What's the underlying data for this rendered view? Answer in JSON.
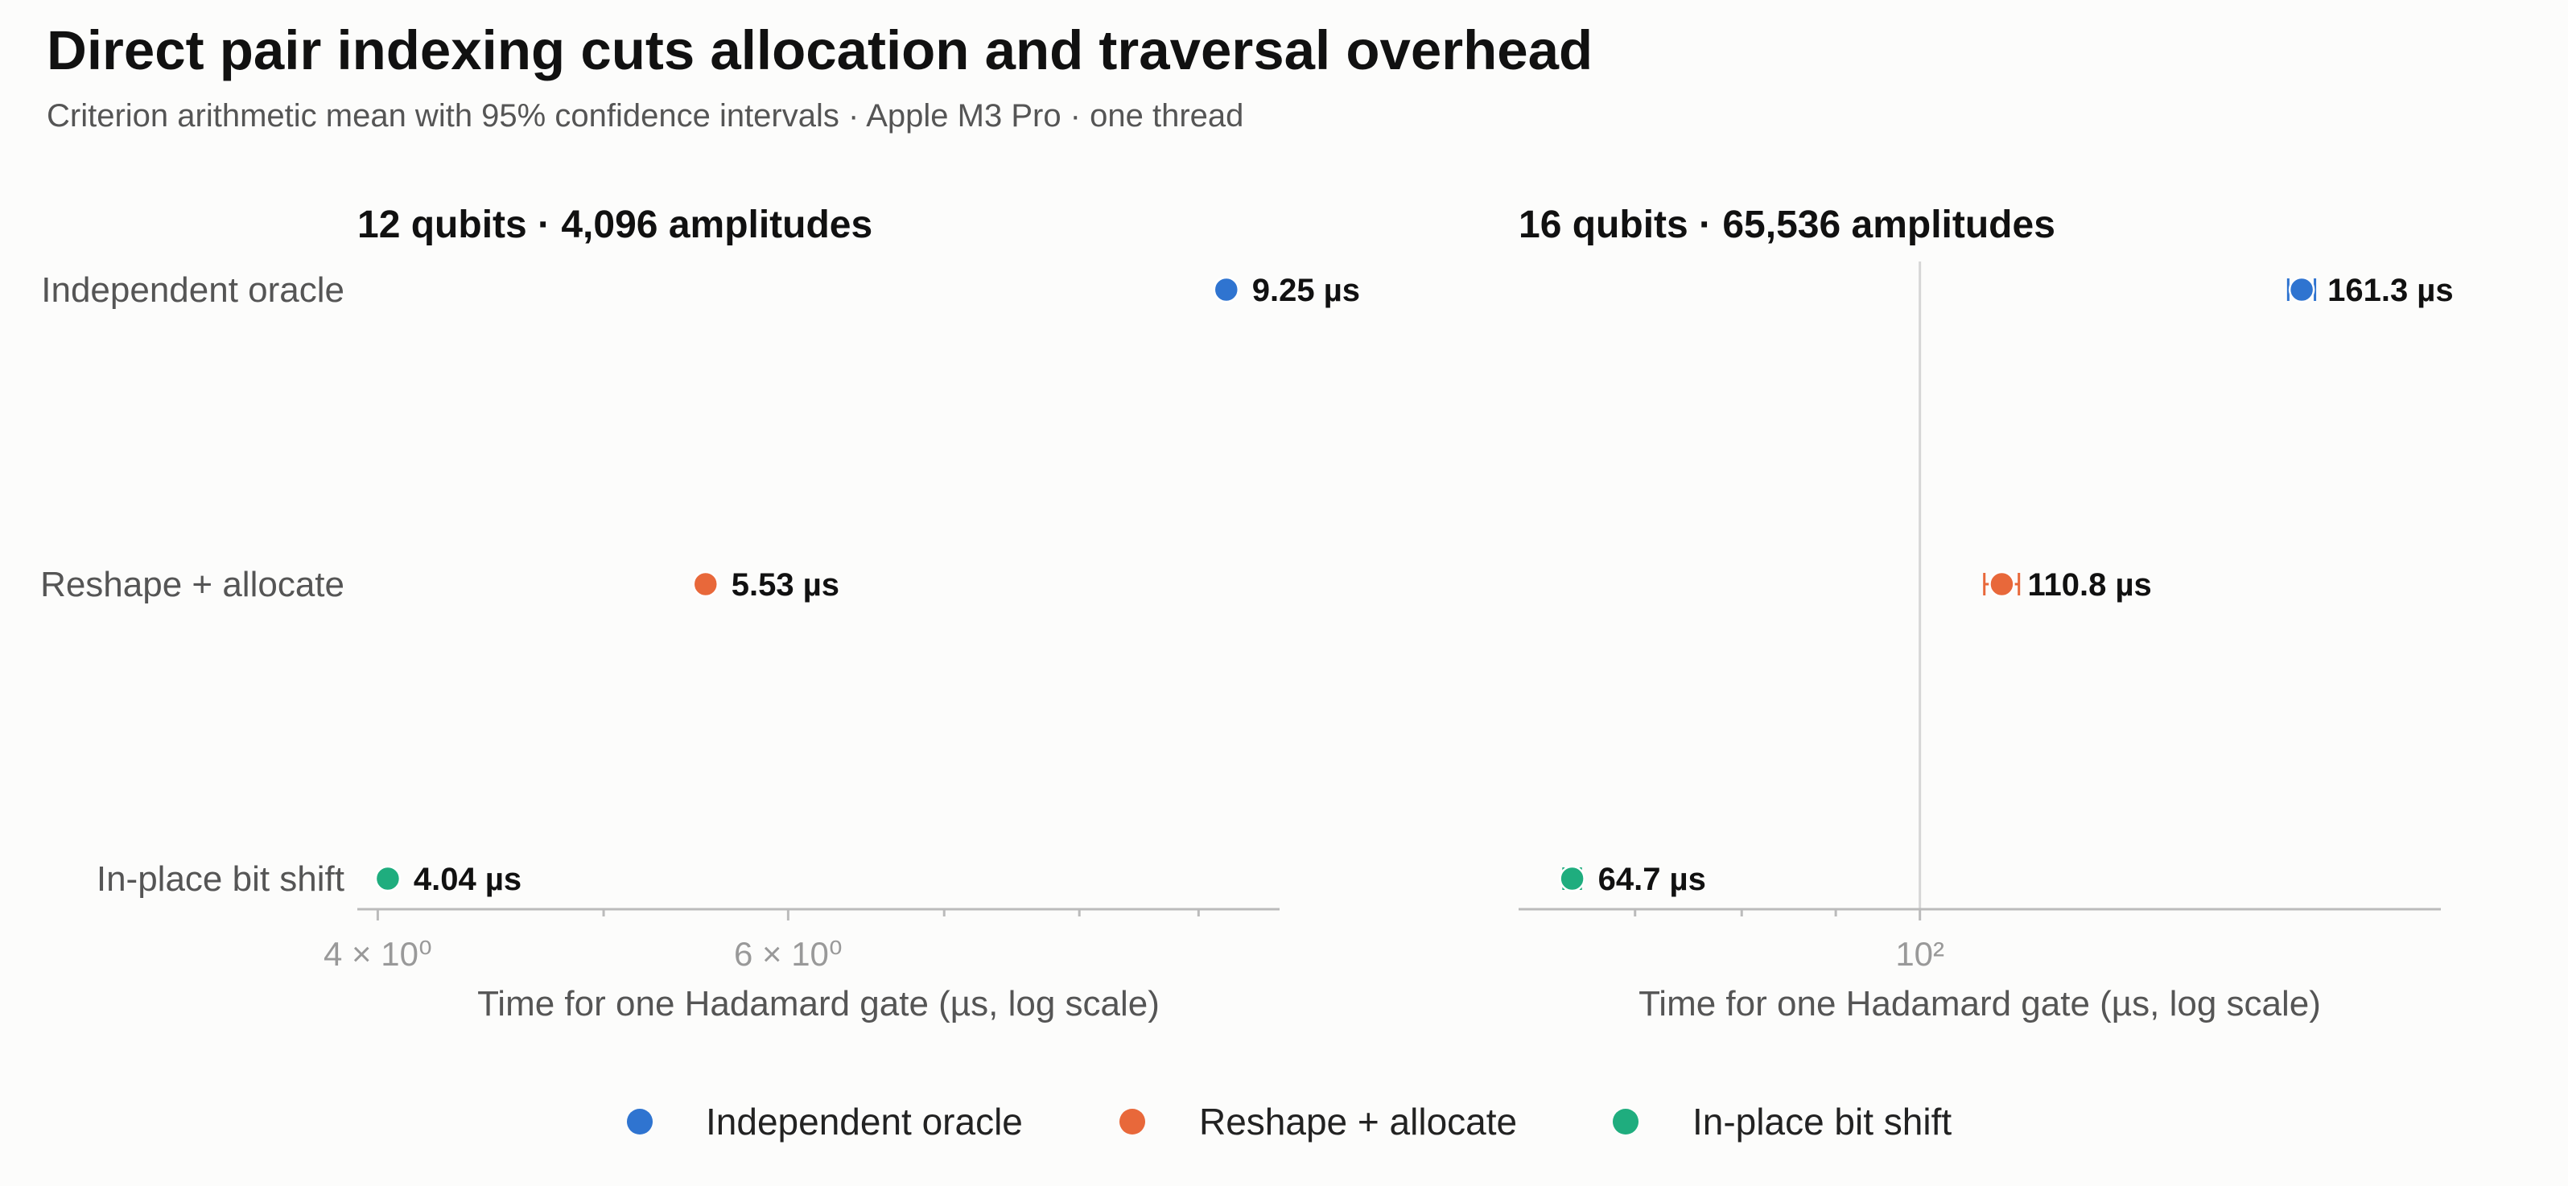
{
  "title": "Direct pair indexing cuts allocation and traversal overhead",
  "subtitle": "Criterion arithmetic mean with 95% confidence intervals · Apple M3 Pro · one thread",
  "legend": [
    {
      "name": "Independent oracle",
      "color": "#2f74d0"
    },
    {
      "name": "Reshape + allocate",
      "color": "#e8683a"
    },
    {
      "name": "In-place bit shift",
      "color": "#1fad7e"
    }
  ],
  "chart_data": [
    {
      "type": "scatter",
      "title": "12 qubits · 4,096 amplitudes",
      "xlabel": "Time for one Hadamard gate (µs, log scale)",
      "xscale": "log",
      "xlim": [
        3.92,
        9.75
      ],
      "categories": [
        "Independent oracle",
        "Reshape + allocate",
        "In-place bit shift"
      ],
      "values": [
        9.25,
        5.53,
        4.04
      ],
      "value_labels": [
        "9.25 µs",
        "5.53 µs",
        "4.04 µs"
      ],
      "ticks": [
        {
          "value": 4,
          "label": "4 × 10⁰"
        },
        {
          "value": 5
        },
        {
          "value": 6,
          "label": "6 × 10⁰"
        },
        {
          "value": 7
        },
        {
          "value": 8
        },
        {
          "value": 9
        }
      ],
      "grid": false
    },
    {
      "type": "scatter",
      "title": "16 qubits · 65,536 amplitudes",
      "xlabel": "Time for one Hadamard gate (µs, log scale)",
      "xscale": "log",
      "xlim": [
        60.5,
        192
      ],
      "categories": [
        "Independent oracle",
        "Reshape + allocate",
        "In-place bit shift"
      ],
      "values": [
        161.3,
        110.8,
        64.7
      ],
      "value_labels": [
        "161.3 µs",
        "110.8 µs",
        "64.7 µs"
      ],
      "ci": [
        [
          158.6,
          164.0
        ],
        [
          108.4,
          113.2
        ],
        [
          64.0,
          65.4
        ]
      ],
      "ticks": [
        {
          "value": 70
        },
        {
          "value": 80
        },
        {
          "value": 90
        },
        {
          "value": 100,
          "label": "10²"
        }
      ],
      "gridlines": [
        100
      ],
      "grid": false
    }
  ]
}
